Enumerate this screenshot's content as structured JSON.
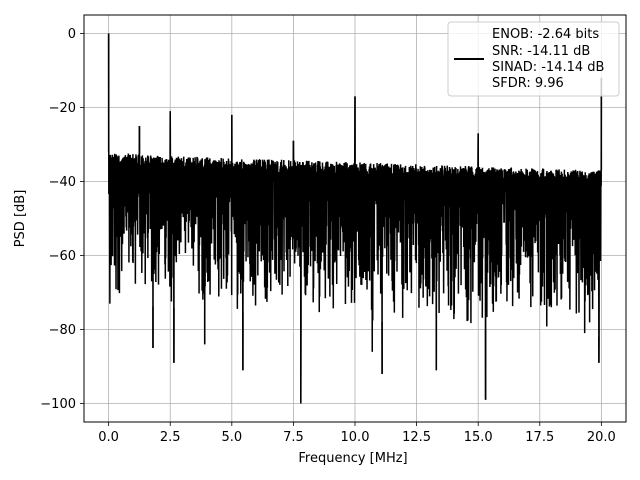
{
  "chart_data": {
    "type": "line",
    "xlabel": "Frequency [MHz]",
    "ylabel": "PSD [dB]",
    "xlim": [
      -1.0,
      21.0
    ],
    "ylim": [
      -105,
      5
    ],
    "grid": true,
    "legend_position": "top-right",
    "x_ticks": [
      0.0,
      2.5,
      5.0,
      7.5,
      10.0,
      12.5,
      15.0,
      17.5,
      20.0
    ],
    "x_tick_labels": [
      "0.0",
      "2.5",
      "5.0",
      "7.5",
      "10.0",
      "12.5",
      "15.0",
      "17.5",
      "20.0"
    ],
    "y_ticks": [
      0,
      -20,
      -40,
      -60,
      -80,
      -100
    ],
    "y_tick_labels": [
      "0",
      "−20",
      "−40",
      "−60",
      "−80",
      "−100"
    ],
    "series": [
      {
        "name": "ENOB: -2.64 bits\nSNR: -14.11 dB\nSINAD: -14.14 dB\nSFDR: 9.96",
        "color": "#000000",
        "noise_ceiling": {
          "x": [
            0.0,
            2.0,
            20.0
          ],
          "y": [
            -32,
            -33,
            -37
          ]
        },
        "noise_floor": {
          "x": [
            0.0,
            20.0
          ],
          "y": [
            -73,
            -82
          ]
        },
        "spurs": [
          {
            "x": 0.0,
            "y": 0
          },
          {
            "x": 1.25,
            "y": -25
          },
          {
            "x": 2.5,
            "y": -21
          },
          {
            "x": 5.0,
            "y": -22
          },
          {
            "x": 7.5,
            "y": -29
          },
          {
            "x": 10.0,
            "y": -17
          },
          {
            "x": 15.0,
            "y": -27
          },
          {
            "x": 20.0,
            "y": -12
          }
        ],
        "dips": [
          {
            "x": 0.05,
            "y": -73
          },
          {
            "x": 1.8,
            "y": -85
          },
          {
            "x": 2.65,
            "y": -89
          },
          {
            "x": 3.9,
            "y": -84
          },
          {
            "x": 5.45,
            "y": -91
          },
          {
            "x": 7.8,
            "y": -100
          },
          {
            "x": 10.7,
            "y": -86
          },
          {
            "x": 11.1,
            "y": -92
          },
          {
            "x": 13.3,
            "y": -91
          },
          {
            "x": 15.3,
            "y": -99
          },
          {
            "x": 19.9,
            "y": -89
          }
        ]
      }
    ]
  },
  "legend": {
    "line1": "ENOB: -2.64 bits",
    "line2": "SNR: -14.11 dB",
    "line3": "SINAD: -14.14 dB",
    "line4": "SFDR: 9.96"
  }
}
